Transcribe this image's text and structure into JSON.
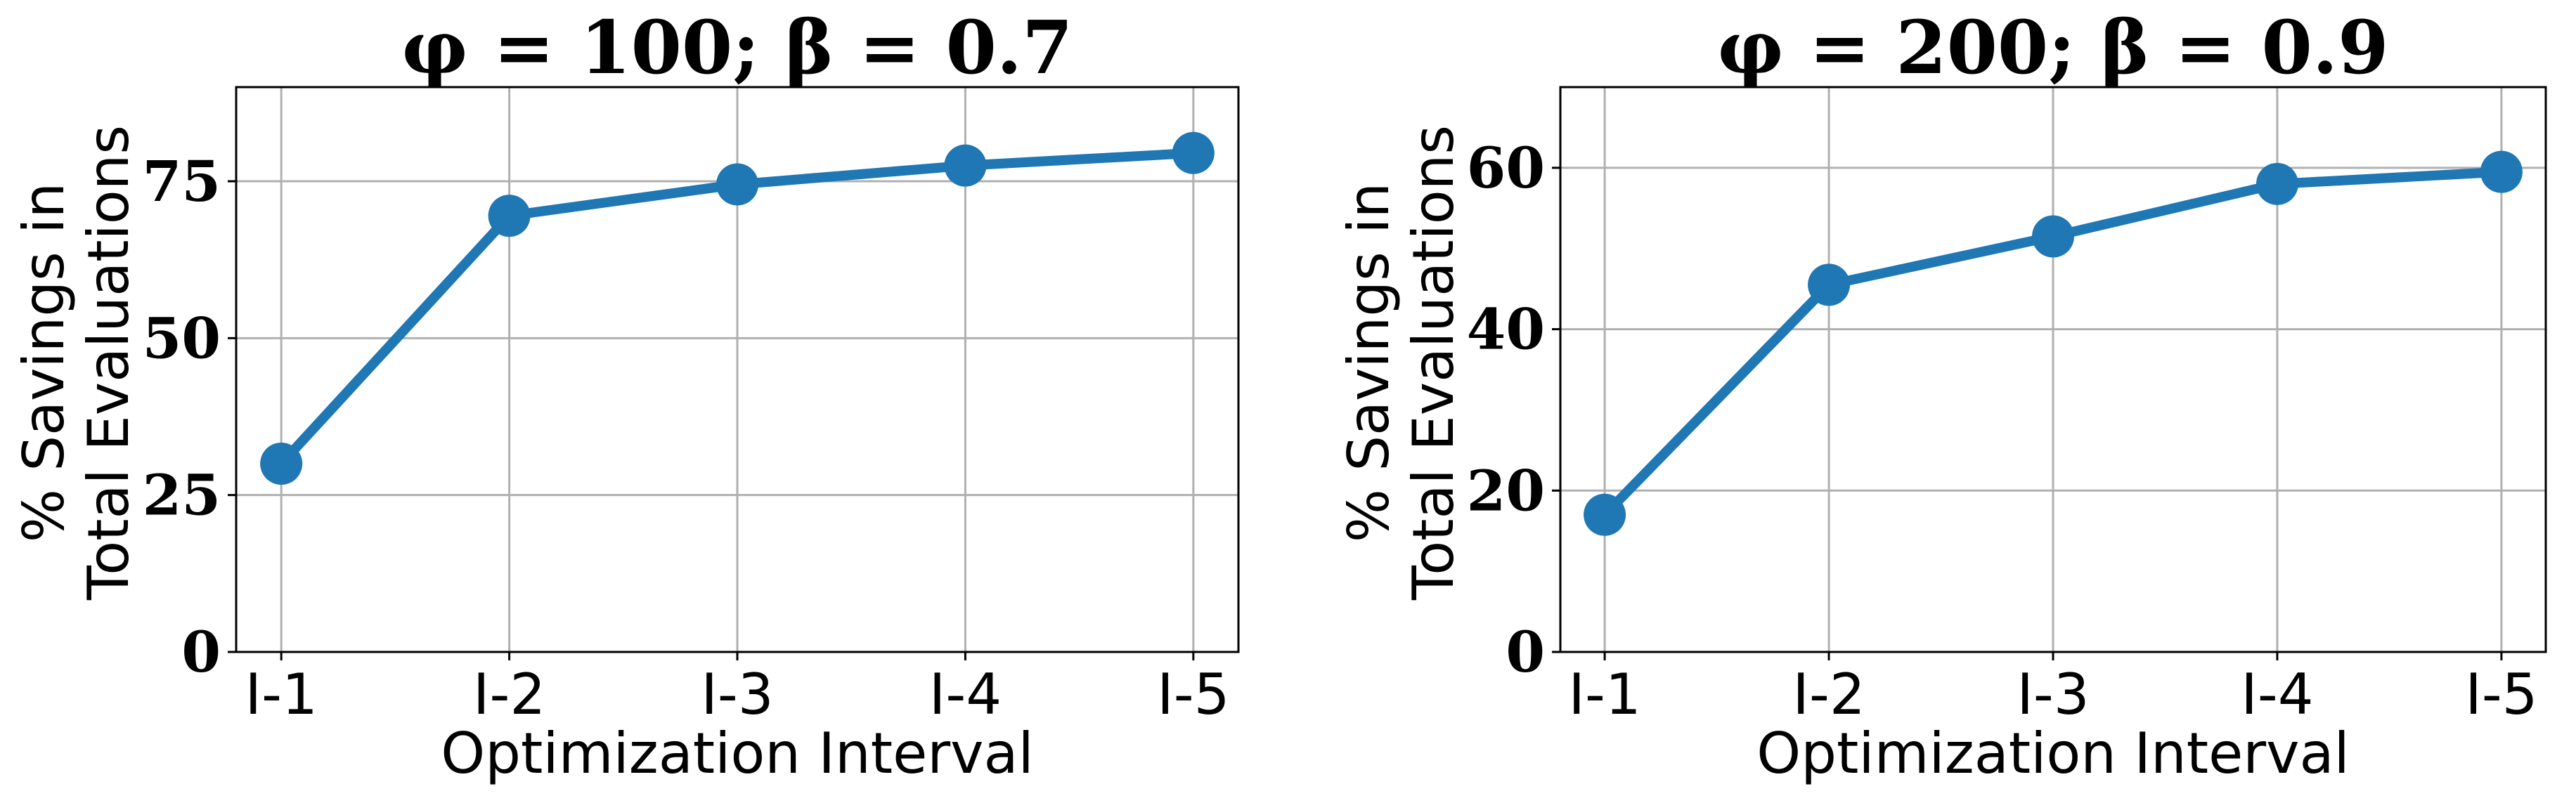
{
  "colors": {
    "series": "#1f77b4",
    "grid": "#b0b0b0",
    "axis": "#000000"
  },
  "chart_data": [
    {
      "type": "line",
      "title": "φ = 100; β = 0.7",
      "xlabel": "Optimization Interval",
      "ylabel": [
        "% Savings in",
        "Total Evaluations"
      ],
      "categories": [
        "I-1",
        "I-2",
        "I-3",
        "I-4",
        "I-5"
      ],
      "values": [
        30,
        69.5,
        74.5,
        77.5,
        79.5
      ],
      "ylim": [
        0,
        90
      ],
      "yticks": [
        0,
        25,
        50,
        75
      ],
      "grid": true
    },
    {
      "type": "line",
      "title": "φ = 200; β = 0.9",
      "xlabel": "Optimization Interval",
      "ylabel": [
        "% Savings in",
        "Total Evaluations"
      ],
      "categories": [
        "I-1",
        "I-2",
        "I-3",
        "I-4",
        "I-5"
      ],
      "values": [
        17,
        45.5,
        51.5,
        58,
        59.5
      ],
      "ylim": [
        0,
        70
      ],
      "yticks": [
        0,
        20,
        40,
        60
      ],
      "grid": true
    }
  ]
}
